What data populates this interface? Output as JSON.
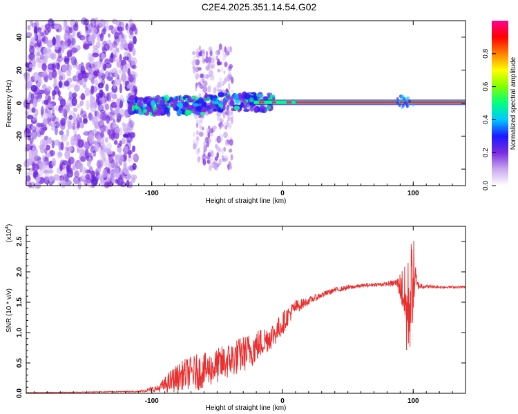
{
  "title": "C2E4.2025.351.14.54.G02",
  "chart_data": [
    {
      "type": "heatmap",
      "name": "spectrogram",
      "xlabel": "Height of straight line (km)",
      "ylabel": "Frequency (Hz)",
      "xlim": [
        -196,
        140
      ],
      "ylim": [
        -50,
        50
      ],
      "xticks": [
        -100,
        0,
        100
      ],
      "yticks": [
        -40,
        -20,
        0,
        20,
        40
      ],
      "xtick_labels": [
        "-100",
        "0",
        "100"
      ],
      "ytick_labels": [
        "-40",
        "-20",
        "0",
        "20",
        "40"
      ],
      "colorbar": {
        "label": "Normalized spectral amplitude",
        "range": [
          0,
          1
        ],
        "ticks": [
          0.0,
          0.2,
          0.4,
          0.6,
          0.8
        ],
        "tick_labels": [
          "0.0",
          "0.2",
          "0.4",
          "0.6",
          "0.8"
        ],
        "colors": [
          "#ffffff",
          "#c8a8f0",
          "#7a2be0",
          "#1a1aff",
          "#00c8ff",
          "#00ff80",
          "#80ff00",
          "#ffff00",
          "#ff8000",
          "#ff0000",
          "#ff0090"
        ]
      },
      "features": {
        "noise_region_x": [
          -196,
          -112
        ],
        "signal_line_freq": 0.5,
        "signal_start_x": -118,
        "scattered_band_x": [
          -68,
          -38
        ],
        "strong_line_x": [
          -22,
          140
        ]
      }
    },
    {
      "type": "line",
      "name": "snr",
      "xlabel": "Height of straight line (km)",
      "ylabel": "SNR (10 * v/v)",
      "scale_label": "(x10",
      "scale_exp": "4",
      "scale_close": ")",
      "xlim": [
        -196,
        140
      ],
      "ylim": [
        0,
        2.75
      ],
      "xticks": [
        -100,
        0,
        100
      ],
      "yticks": [
        0.0,
        0.5,
        1.0,
        1.5,
        2.0,
        2.5
      ],
      "xtick_labels": [
        "-100",
        "0",
        "100"
      ],
      "ytick_labels": [
        "0.0",
        "0.5",
        "1.0",
        "1.5",
        "2.0",
        "2.5"
      ],
      "color": "#e83030",
      "series": [
        {
          "name": "SNR",
          "x": [
            -196,
            -150,
            -110,
            -95,
            -85,
            -75,
            -65,
            -55,
            -45,
            -35,
            -25,
            -15,
            -5,
            0,
            5,
            10,
            20,
            30,
            40,
            50,
            60,
            70,
            80,
            88,
            92,
            95,
            98,
            100,
            103,
            110,
            120,
            130,
            140
          ],
          "y": [
            0.01,
            0.02,
            0.03,
            0.08,
            0.2,
            0.32,
            0.35,
            0.4,
            0.5,
            0.6,
            0.7,
            0.85,
            1.0,
            1.15,
            1.3,
            1.42,
            1.52,
            1.62,
            1.7,
            1.74,
            1.77,
            1.79,
            1.8,
            1.82,
            1.7,
            1.3,
            1.6,
            1.95,
            1.78,
            1.76,
            1.75,
            1.75,
            1.75
          ],
          "noise_amplitude": [
            0.005,
            0.005,
            0.01,
            0.06,
            0.2,
            0.25,
            0.3,
            0.28,
            0.3,
            0.3,
            0.3,
            0.25,
            0.2,
            0.2,
            0.15,
            0.12,
            0.06,
            0.05,
            0.04,
            0.04,
            0.03,
            0.03,
            0.03,
            0.08,
            0.4,
            0.8,
            0.9,
            0.7,
            0.08,
            0.03,
            0.02,
            0.02,
            0.02
          ]
        }
      ]
    }
  ]
}
